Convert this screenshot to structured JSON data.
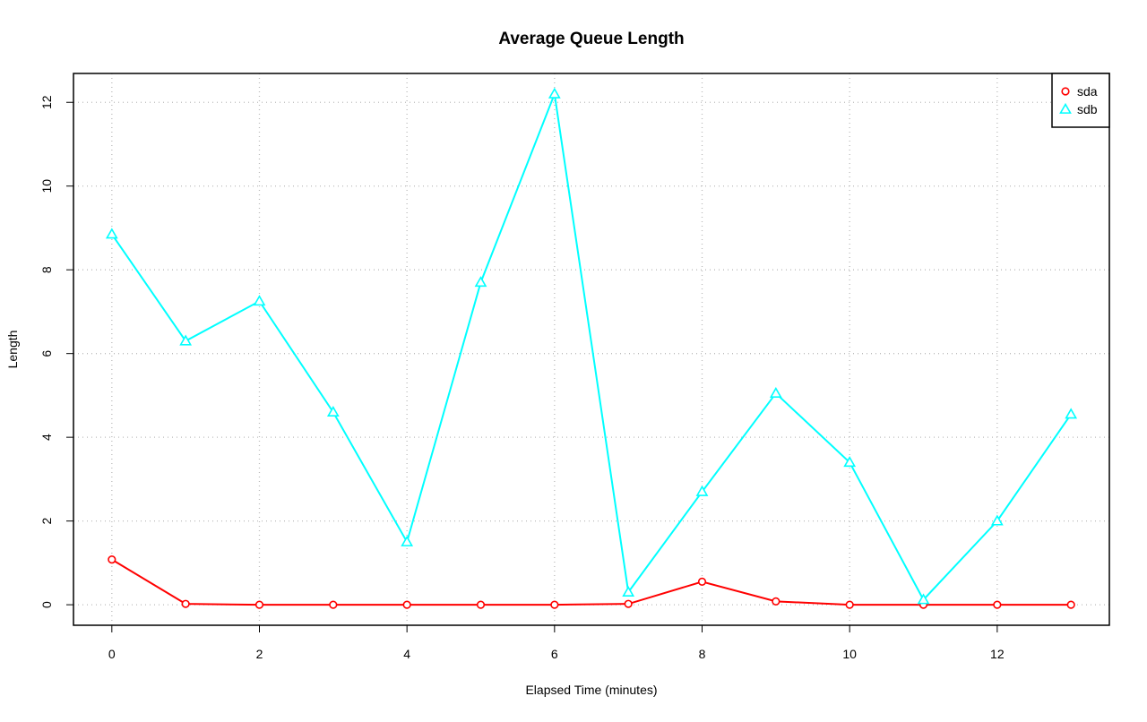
{
  "chart_data": {
    "type": "line",
    "title": "Average Queue Length",
    "x_label": "Elapsed Time (minutes)",
    "y_label": "Length",
    "x": [
      0,
      1,
      2,
      3,
      4,
      5,
      6,
      7,
      8,
      9,
      10,
      11,
      12,
      13
    ],
    "series": [
      {
        "name": "sda",
        "color": "#ff0000",
        "marker": "circle",
        "values": [
          1.08,
          0.02,
          0,
          0,
          0,
          0,
          0,
          0.02,
          0.55,
          0.08,
          0,
          0,
          0,
          0
        ]
      },
      {
        "name": "sdb",
        "color": "#00ffff",
        "marker": "triangle",
        "values": [
          8.85,
          6.3,
          7.25,
          4.6,
          1.5,
          7.7,
          12.2,
          0.3,
          2.7,
          5.05,
          3.4,
          0.12,
          2.0,
          4.55
        ]
      }
    ],
    "xlim": [
      -0.52,
      13.52
    ],
    "ylim": [
      -0.49,
      12.69
    ],
    "xticks": [
      0,
      2,
      4,
      6,
      8,
      10,
      12
    ],
    "yticks": [
      0,
      2,
      4,
      6,
      8,
      10,
      12
    ],
    "grid": true,
    "legend": "topright"
  }
}
